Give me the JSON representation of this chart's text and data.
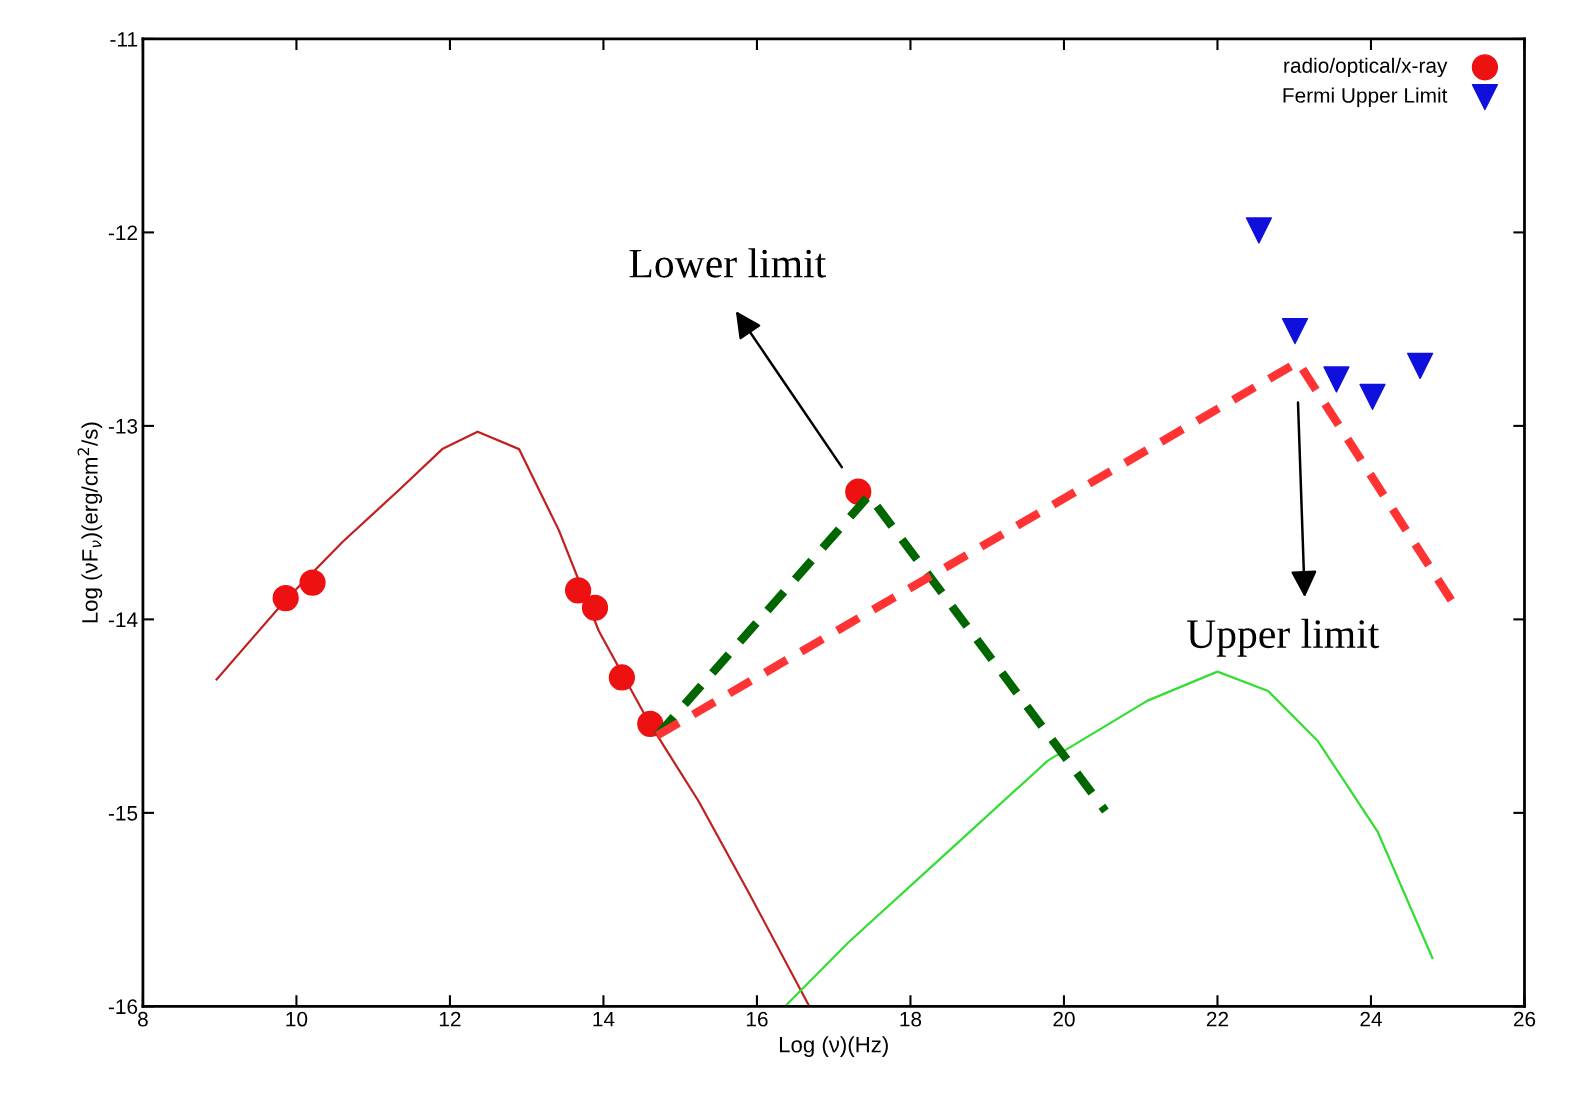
{
  "chart_data": {
    "type": "scatter",
    "xlabel": "Log (ν)(Hz)",
    "ylabel": "Log (νF$_{ν}$)(erg/cm$^{2}$/s)",
    "xlim": [
      8,
      26
    ],
    "ylim": [
      -16,
      -11
    ],
    "xticks": [
      8,
      10,
      12,
      14,
      16,
      18,
      20,
      22,
      24,
      26
    ],
    "yticks": [
      -16,
      -15,
      -14,
      -13,
      -12,
      -11
    ],
    "grid": false,
    "legend": "top right",
    "series": [
      {
        "type": "line",
        "color": "#c02020",
        "line_style": "solid",
        "marker": "none",
        "x": [
          8.96,
          9.86,
          10.6,
          11.34,
          11.9,
          12.36,
          12.9,
          13.42,
          13.94,
          14.59,
          15.24,
          15.89,
          16.67
        ],
        "values": [
          -14.31,
          -13.9,
          -13.6,
          -13.33,
          -13.12,
          -13.03,
          -13.12,
          -13.54,
          -14.06,
          -14.53,
          -14.94,
          -15.41,
          -15.99
        ]
      },
      {
        "type": "line",
        "color": "#33dd33",
        "line_style": "solid",
        "marker": "none",
        "x": [
          16.39,
          17.19,
          18.49,
          19.79,
          21.09,
          22.0,
          22.66,
          23.31,
          24.09,
          24.8
        ],
        "values": [
          -15.99,
          -15.67,
          -15.2,
          -14.73,
          -14.42,
          -14.27,
          -14.37,
          -14.63,
          -15.1,
          -15.75
        ]
      },
      {
        "type": "line",
        "color": "#006600",
        "line_style": "dashed",
        "marker": "none",
        "x": [
          14.7,
          17.46,
          20.54
        ],
        "values": [
          -14.6,
          -13.36,
          -14.99
        ]
      },
      {
        "type": "line",
        "color": "#ff3333",
        "line_style": "dashed",
        "marker": "none",
        "x": [
          14.7,
          23.05,
          25.06
        ],
        "values": [
          -14.6,
          -12.67,
          -13.91
        ]
      },
      {
        "name": "radio/optical/x-ray",
        "color": "#ee1111",
        "marker": "circle",
        "x": [
          9.86,
          10.21,
          13.67,
          13.89,
          14.24,
          14.61,
          17.32
        ],
        "values": [
          -13.89,
          -13.81,
          -13.85,
          -13.94,
          -14.3,
          -14.54,
          -13.34
        ]
      },
      {
        "name": "Fermi Upper Limit",
        "color": "#1010dd",
        "marker": "triangle",
        "x": [
          22.54,
          23.01,
          23.55,
          24.02,
          24.64
        ],
        "values": [
          -11.99,
          -12.51,
          -12.76,
          -12.85,
          -12.69
        ]
      }
    ],
    "annotations": [
      "Lower limit",
      "Upper limit"
    ]
  }
}
